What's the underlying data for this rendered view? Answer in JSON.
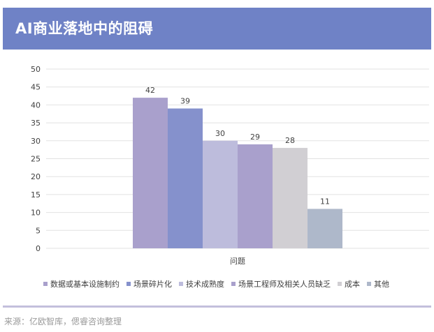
{
  "header": {
    "title": "AI商业落地中的阻碍"
  },
  "footer": {
    "source": "来源：亿欧智库，偲睿咨询整理"
  },
  "colors": {
    "header_bg": "#6f82c6",
    "grid": "#e2e2e2",
    "label": "#404040",
    "divider": "#c3bfdc"
  },
  "chart_data": {
    "type": "bar",
    "categories": [
      "问题"
    ],
    "series": [
      {
        "name": "数据或基本设施制约",
        "values": [
          42
        ],
        "color": "#a9a0cc"
      },
      {
        "name": "场景碎片化",
        "values": [
          39
        ],
        "color": "#8591cc"
      },
      {
        "name": "技术成熟度",
        "values": [
          30
        ],
        "color": "#bdbcdc"
      },
      {
        "name": "场景工程师及相关人员缺乏",
        "values": [
          29
        ],
        "color": "#a9a0cc"
      },
      {
        "name": "成本",
        "values": [
          28
        ],
        "color": "#d1cfd3"
      },
      {
        "name": "其他",
        "values": [
          11
        ],
        "color": "#aeb8ca"
      }
    ],
    "ylim": [
      0,
      50
    ],
    "yticks": [
      0,
      5,
      10,
      15,
      20,
      25,
      30,
      35,
      40,
      45,
      50
    ],
    "grid": true,
    "legend": "bottom",
    "data_labels": true
  }
}
